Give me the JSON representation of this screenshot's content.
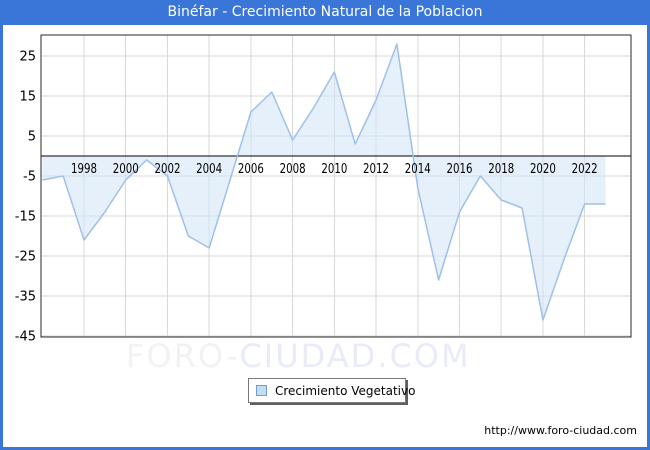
{
  "window": {
    "title": "Binéfar - Crecimiento Natural de la Poblacion"
  },
  "chart_data": {
    "type": "area",
    "title": "Binéfar - Crecimiento Natural de la Poblacion",
    "xlabel": "",
    "ylabel": "",
    "x": [
      1996,
      1997,
      1998,
      1999,
      2000,
      2001,
      2002,
      2003,
      2004,
      2005,
      2006,
      2007,
      2008,
      2009,
      2010,
      2011,
      2012,
      2013,
      2014,
      2015,
      2016,
      2017,
      2018,
      2019,
      2020,
      2021,
      2022,
      2023
    ],
    "series": [
      {
        "name": "Crecimiento Vegetativo",
        "values": [
          -6,
          -5,
          -21,
          -14,
          -6,
          -1,
          -5,
          -20,
          -23,
          -6,
          11,
          16,
          4,
          12,
          21,
          3,
          14,
          28,
          -8,
          -31,
          -14,
          -5,
          -11,
          -13,
          -41,
          -26,
          -12,
          -12
        ]
      }
    ],
    "xticks": [
      1998,
      2000,
      2002,
      2004,
      2006,
      2008,
      2010,
      2012,
      2014,
      2016,
      2018,
      2020,
      2022
    ],
    "yticks": [
      25,
      15,
      5,
      -5,
      -15,
      -25,
      -35,
      -45
    ],
    "ylim": [
      -45.25,
      30.25
    ],
    "baseline": 0,
    "grid": true,
    "legend_position": "bottom-center"
  },
  "legend": {
    "label": "Crecimiento Vegetativo"
  },
  "watermark": {
    "left": "FORO-",
    "right": "CIUDAD.COM"
  },
  "footer": {
    "url": "http://www.foro-ciudad.com"
  },
  "colors": {
    "titlebar": "#3a76d8",
    "title_text": "#ffffff",
    "line": "#9fc0e8",
    "fill": "#cfe3f8",
    "grid": "#d9d9d9",
    "axis": "#000000",
    "frame": "#2a2a2a",
    "legend_marker_fill": "#c5ddf4",
    "legend_marker_border": "#6d9ed6",
    "watermark_left": "#f2f2f3",
    "watermark_right": "#e9ecf8",
    "text": "#000000"
  }
}
